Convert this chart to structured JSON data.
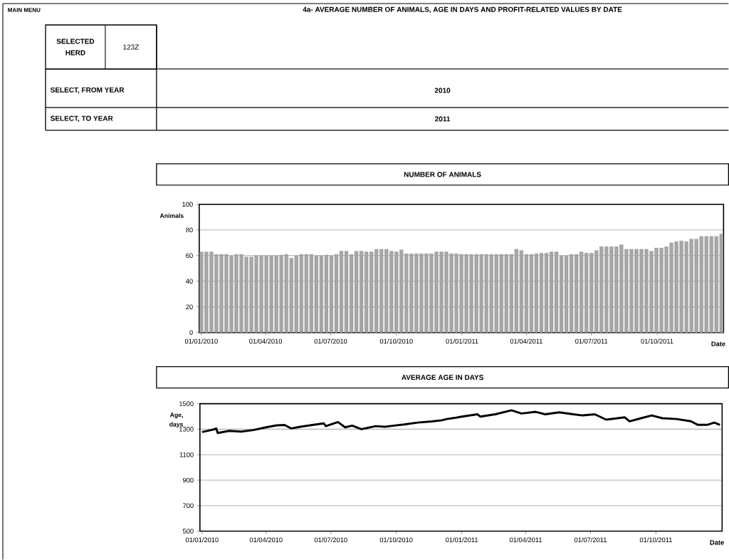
{
  "chart_data": [
    {
      "type": "bar",
      "title": "4a- AVERAGE NUMBER OF ANIMALS, AGE IN DAYS AND PROFIT-RELATED VALUES BY DATE",
      "subtitle": "NUMBER OF ANIMALS",
      "xlabel": "Date",
      "ylabel": "Animals",
      "annotations": [
        "MAIN MENU",
        "SELECTED HERD",
        "123Z",
        "SELECT, FROM YEAR",
        "2010",
        "SELECT, TO YEAR",
        "2011"
      ],
      "x": [
        "2010-01-01",
        "2010-01-08",
        "2010-01-15",
        "2010-01-22",
        "2010-01-29",
        "2010-02-05",
        "2010-02-12",
        "2010-02-19",
        "2010-02-26",
        "2010-03-05",
        "2010-03-12",
        "2010-03-19",
        "2010-03-26",
        "2010-04-02",
        "2010-04-09",
        "2010-04-16",
        "2010-04-23",
        "2010-04-30",
        "2010-05-07",
        "2010-05-14",
        "2010-05-21",
        "2010-05-28",
        "2010-06-04",
        "2010-06-11",
        "2010-06-18",
        "2010-06-25",
        "2010-07-02",
        "2010-07-09",
        "2010-07-16",
        "2010-07-23",
        "2010-07-30",
        "2010-08-06",
        "2010-08-13",
        "2010-08-20",
        "2010-08-27",
        "2010-09-03",
        "2010-09-10",
        "2010-09-17",
        "2010-09-24",
        "2010-10-01",
        "2010-10-08",
        "2010-10-15",
        "2010-10-22",
        "2010-10-29",
        "2010-11-05",
        "2010-11-12",
        "2010-11-19",
        "2010-11-26",
        "2010-12-03",
        "2010-12-10",
        "2010-12-17",
        "2010-12-24",
        "2010-12-31",
        "2011-01-07",
        "2011-01-14",
        "2011-01-21",
        "2011-01-28",
        "2011-02-04",
        "2011-02-11",
        "2011-02-18",
        "2011-02-25",
        "2011-03-04",
        "2011-03-11",
        "2011-03-18",
        "2011-03-25",
        "2011-04-01",
        "2011-04-08",
        "2011-04-15",
        "2011-04-22",
        "2011-04-29",
        "2011-05-06",
        "2011-05-13",
        "2011-05-20",
        "2011-05-27",
        "2011-06-03",
        "2011-06-10",
        "2011-06-17",
        "2011-06-24",
        "2011-07-01",
        "2011-07-08",
        "2011-07-15",
        "2011-07-22",
        "2011-07-29",
        "2011-08-05",
        "2011-08-12",
        "2011-08-19",
        "2011-08-26",
        "2011-09-02",
        "2011-09-09",
        "2011-09-16",
        "2011-09-23",
        "2011-09-30",
        "2011-10-07",
        "2011-10-14",
        "2011-10-21",
        "2011-10-28",
        "2011-11-04",
        "2011-11-11",
        "2011-11-18",
        "2011-11-25",
        "2011-12-02",
        "2011-12-09",
        "2011-12-16",
        "2011-12-23",
        "2011-12-30"
      ],
      "values": [
        63,
        63,
        63,
        61,
        61,
        61,
        60,
        61,
        61,
        59,
        59,
        60,
        60,
        60,
        60,
        60,
        60.5,
        61,
        58,
        60,
        61,
        61,
        61,
        60,
        60,
        60.5,
        60,
        61,
        63.5,
        63.5,
        61,
        63.5,
        63.5,
        63,
        63,
        65,
        65,
        65,
        63.5,
        63,
        64.5,
        61.5,
        61.5,
        61.5,
        61.5,
        61.5,
        61.5,
        63,
        63,
        63,
        61.5,
        61.5,
        61,
        61,
        61,
        61,
        61,
        61,
        61,
        61,
        61,
        61,
        61,
        65,
        64,
        61,
        61,
        61.5,
        62,
        62,
        63,
        63,
        60,
        60,
        61,
        61,
        63,
        62,
        62,
        64,
        67,
        67,
        67,
        67,
        68.5,
        65,
        65,
        65,
        65,
        65,
        63.5,
        66,
        66,
        67,
        70,
        71,
        71.5,
        71,
        73,
        73,
        75,
        75,
        75,
        75,
        77
      ],
      "color": "#a6a6a6",
      "xlim": [
        "2009-12-29",
        "2012-01-02"
      ],
      "xticks": [
        {
          "value": "2010-01-01",
          "label": "01/01/2010"
        },
        {
          "value": "2010-04-01",
          "label": "01/04/2010"
        },
        {
          "value": "2010-07-01",
          "label": "01/07/2010"
        },
        {
          "value": "2010-10-01",
          "label": "01/10/2010"
        },
        {
          "value": "2011-01-01",
          "label": "01/01/2011"
        },
        {
          "value": "2011-04-01",
          "label": "01/04/2011"
        },
        {
          "value": "2011-07-01",
          "label": "01/07/2011"
        },
        {
          "value": "2011-10-01",
          "label": "01/10/2011"
        }
      ],
      "ylim": [
        0,
        100
      ],
      "yticks": [
        0,
        20,
        40,
        60,
        80,
        100
      ],
      "grid": "y"
    },
    {
      "type": "line",
      "title": "AVERAGE AGE IN DAYS",
      "xlabel": "Date",
      "ylabel": "Age, days",
      "x": [
        "2010-01-01",
        "2010-01-16",
        "2010-01-21",
        "2010-01-23",
        "2010-02-08",
        "2010-02-25",
        "2010-03-14",
        "2010-04-01",
        "2010-04-16",
        "2010-04-27",
        "2010-05-06",
        "2010-05-19",
        "2010-06-05",
        "2010-06-21",
        "2010-06-24",
        "2010-07-11",
        "2010-07-21",
        "2010-07-31",
        "2010-08-13",
        "2010-09-02",
        "2010-09-15",
        "2010-09-28",
        "2010-10-12",
        "2010-10-31",
        "2010-11-20",
        "2010-12-04",
        "2010-12-11",
        "2010-12-24",
        "2011-01-01",
        "2011-01-23",
        "2011-01-27",
        "2011-02-17",
        "2011-03-12",
        "2011-03-26",
        "2011-04-15",
        "2011-04-28",
        "2011-05-18",
        "2011-06-07",
        "2011-06-20",
        "2011-07-07",
        "2011-07-23",
        "2011-08-18",
        "2011-08-25",
        "2011-09-10",
        "2011-09-25",
        "2011-10-10",
        "2011-10-30",
        "2011-11-19",
        "2011-11-29",
        "2011-12-12",
        "2011-12-22",
        "2011-12-30"
      ],
      "values": [
        1278,
        1296,
        1305,
        1270,
        1287,
        1281,
        1293,
        1315,
        1330,
        1333,
        1306,
        1319,
        1333,
        1346,
        1324,
        1356,
        1315,
        1328,
        1300,
        1324,
        1319,
        1328,
        1337,
        1352,
        1361,
        1370,
        1380,
        1390,
        1399,
        1417,
        1399,
        1417,
        1448,
        1423,
        1436,
        1417,
        1432,
        1417,
        1408,
        1417,
        1375,
        1393,
        1362,
        1386,
        1408,
        1386,
        1380,
        1362,
        1334,
        1334,
        1352,
        1334
      ],
      "color": "#000000",
      "xlim": [
        "2009-12-29",
        "2012-01-02"
      ],
      "xticks": [
        {
          "value": "2010-01-01",
          "label": "01/01/2010"
        },
        {
          "value": "2010-04-01",
          "label": "01/04/2010"
        },
        {
          "value": "2010-07-01",
          "label": "01/07/2010"
        },
        {
          "value": "2010-10-01",
          "label": "01/10/2010"
        },
        {
          "value": "2011-01-01",
          "label": "01/01/2011"
        },
        {
          "value": "2011-04-01",
          "label": "01/04/2011"
        },
        {
          "value": "2011-07-01",
          "label": "01/07/2011"
        },
        {
          "value": "2011-10-01",
          "label": "01/10/2011"
        }
      ],
      "ylim": [
        500,
        1500
      ],
      "yticks": [
        500,
        700,
        900,
        1100,
        1300,
        1500
      ],
      "grid": "y"
    }
  ]
}
